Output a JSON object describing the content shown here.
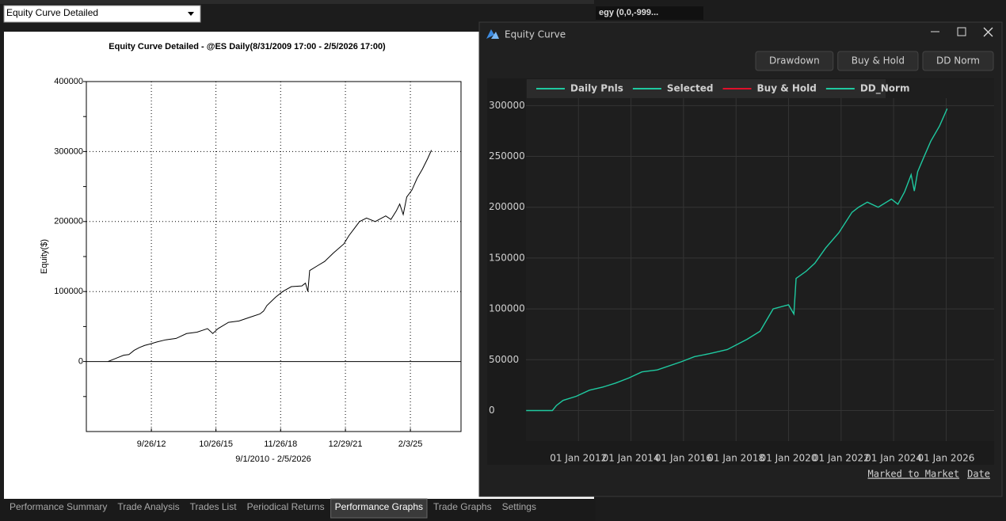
{
  "left_panel": {
    "dropdown": "Equity Curve Detailed",
    "strategy_text": "egy (0,0,-999..."
  },
  "tabs": [
    "Performance Summary",
    "Trade Analysis",
    "Trades List",
    "Periodical Returns",
    "Performance Graphs",
    "Trade Graphs",
    "Settings"
  ],
  "window": {
    "title": "Equity Curve",
    "buttons": [
      "Drawdown",
      "Buy & Hold",
      "DD Norm"
    ],
    "footer_links": [
      "Marked to Market",
      "Date"
    ]
  },
  "chart_data": [
    {
      "type": "line",
      "title": "Equity Curve Detailed - @ES Daily(8/31/2009 17:00 - 2/5/2026 17:00)",
      "x_label": "9/1/2010 - 2/5/2026",
      "y_label": "Equity($)",
      "color": "#000000",
      "grid": true,
      "x": [
        "2010-09-01",
        "2010-12-01",
        "2011-03-01",
        "2011-06-01",
        "2011-09-01",
        "2011-12-01",
        "2012-03-01",
        "2012-06-01",
        "2012-09-01",
        "2013-01-01",
        "2013-06-01",
        "2013-12-01",
        "2014-06-01",
        "2014-12-01",
        "2015-06-01",
        "2015-09-01",
        "2015-12-01",
        "2016-06-01",
        "2016-12-01",
        "2017-06-01",
        "2017-12-01",
        "2018-02-01",
        "2018-04-01",
        "2018-09-01",
        "2019-01-01",
        "2019-06-01",
        "2019-12-01",
        "2020-02-01",
        "2020-03-15",
        "2020-04-15",
        "2020-09-01",
        "2021-01-01",
        "2021-06-01",
        "2021-12-01",
        "2022-03-01",
        "2022-06-01",
        "2022-09-01",
        "2023-01-01",
        "2023-06-01",
        "2023-12-01",
        "2024-03-01",
        "2024-06-01",
        "2024-08-01",
        "2024-10-01",
        "2024-12-01",
        "2025-03-01",
        "2025-06-01",
        "2025-09-01",
        "2025-12-01",
        "2026-02-05"
      ],
      "values": [
        0,
        3000,
        6000,
        9000,
        10000,
        16000,
        20000,
        23000,
        25000,
        28000,
        31000,
        33000,
        40000,
        42000,
        47000,
        40000,
        47000,
        56000,
        58000,
        63000,
        68000,
        72000,
        80000,
        92000,
        100000,
        107000,
        108000,
        112000,
        100000,
        130000,
        137000,
        143000,
        155000,
        168000,
        180000,
        190000,
        200000,
        205000,
        200000,
        208000,
        203000,
        215000,
        225000,
        210000,
        235000,
        245000,
        262000,
        275000,
        290000,
        302000
      ],
      "xlim": [
        "2009-08-20",
        "2027-07-05"
      ],
      "xticks": [
        {
          "value": "2012-09-26",
          "label": "9/26/12"
        },
        {
          "value": "2015-10-26",
          "label": "10/26/15"
        },
        {
          "value": "2018-11-26",
          "label": "11/26/18"
        },
        {
          "value": "2021-12-29",
          "label": "12/29/21"
        },
        {
          "value": "2025-02-03",
          "label": "2/3/25"
        }
      ],
      "ylim": [
        -100000,
        400000
      ],
      "yticks": [
        0,
        100000,
        200000,
        300000,
        400000
      ],
      "yticks_minor": [
        -50000,
        50000,
        150000,
        250000,
        350000
      ]
    },
    {
      "type": "line",
      "grid": true,
      "series": [
        {
          "name": "Daily Pnls",
          "color": "#1fc9a0",
          "values": [
            0,
            0,
            5000,
            10000,
            14000,
            20000,
            23000,
            27000,
            32000,
            38000,
            40000,
            48000,
            53000,
            56000,
            60000,
            70000,
            78000,
            100000,
            104000,
            95000,
            130000,
            137000,
            145000,
            160000,
            175000,
            195000,
            200000,
            205000,
            200000,
            208000,
            203000,
            215000,
            232000,
            216000,
            235000,
            250000,
            265000,
            280000,
            297000
          ]
        },
        {
          "name": "Selected",
          "color": "#1fc9a0"
        },
        {
          "name": "Buy & Hold",
          "color": "#e0102a"
        },
        {
          "name": "DD_Norm",
          "color": "#1fc9a0"
        }
      ],
      "x": [
        "2010-01-04",
        "2011-01-03",
        "2011-03-01",
        "2011-06-01",
        "2011-12-01",
        "2012-06-01",
        "2012-12-01",
        "2013-06-01",
        "2013-12-01",
        "2014-06-01",
        "2015-01-01",
        "2015-12-01",
        "2016-06-01",
        "2017-01-01",
        "2017-09-01",
        "2018-06-01",
        "2018-12-01",
        "2019-06-01",
        "2020-01-01",
        "2020-03-15",
        "2020-04-15",
        "2020-09-01",
        "2021-01-01",
        "2021-06-01",
        "2021-12-01",
        "2022-06-01",
        "2022-09-01",
        "2023-01-01",
        "2023-06-01",
        "2023-12-01",
        "2024-03-01",
        "2024-06-01",
        "2024-09-01",
        "2024-10-15",
        "2024-12-01",
        "2025-03-01",
        "2025-06-01",
        "2025-10-01",
        "2026-01-15"
      ],
      "xlim": [
        "2010-01-01",
        "2027-10-30"
      ],
      "xticks": [
        {
          "value": "2012-01-01",
          "label": "01 Jan 2012"
        },
        {
          "value": "2014-01-01",
          "label": "01 Jan 2014"
        },
        {
          "value": "2016-01-01",
          "label": "01 Jan 2016"
        },
        {
          "value": "2018-01-01",
          "label": "01 Jan 2018"
        },
        {
          "value": "2020-01-01",
          "label": "01 Jan 2020"
        },
        {
          "value": "2022-01-01",
          "label": "01 Jan 2022"
        },
        {
          "value": "2024-01-01",
          "label": "01 Jan 2024"
        },
        {
          "value": "2026-01-01",
          "label": "01 Jan 2026"
        }
      ],
      "ylim": [
        -30000,
        326000
      ],
      "yticks": [
        0,
        50000,
        100000,
        150000,
        200000,
        250000,
        300000
      ]
    }
  ]
}
